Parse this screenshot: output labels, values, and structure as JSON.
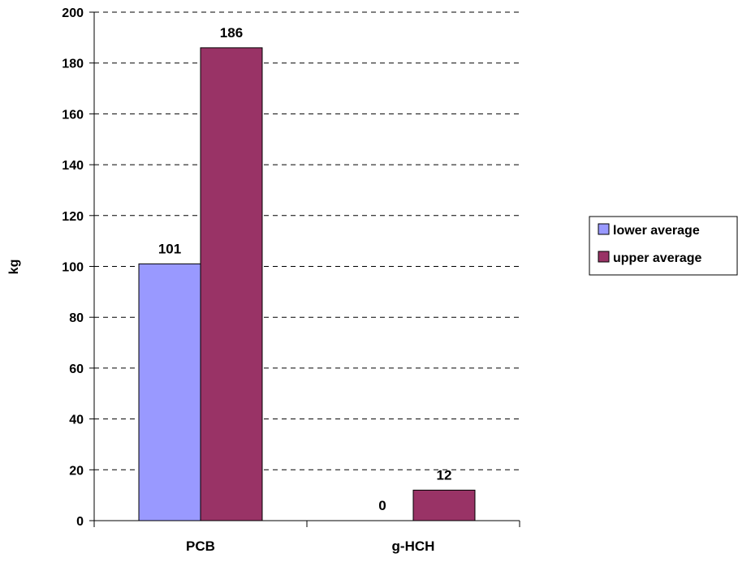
{
  "chart_data": {
    "type": "bar",
    "categories": [
      "PCB",
      "g-HCH"
    ],
    "series": [
      {
        "name": "lower average",
        "values": [
          101,
          0
        ],
        "color": "#9999ff"
      },
      {
        "name": "upper average",
        "values": [
          186,
          12
        ],
        "color": "#993366"
      }
    ],
    "data_labels": [
      [
        "101",
        "0"
      ],
      [
        "186",
        "12"
      ]
    ],
    "ylabel": "kg",
    "xlabel": "",
    "ylim": [
      0,
      200
    ],
    "yticks": [
      0,
      20,
      40,
      60,
      80,
      100,
      120,
      140,
      160,
      180,
      200
    ],
    "grid": "horizontal dashed",
    "legend_position": "right"
  }
}
